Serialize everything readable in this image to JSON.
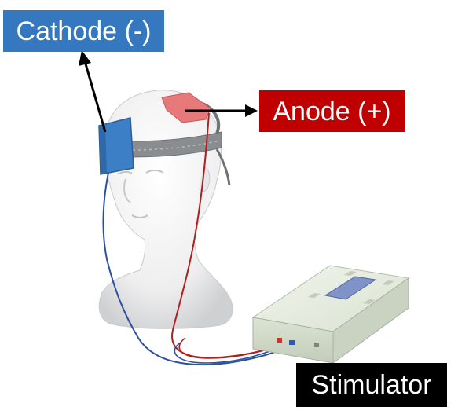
{
  "labels": {
    "cathode": "Cathode (-)",
    "anode": "Anode (+)",
    "stimulator": "Stimulator"
  },
  "colors": {
    "cathode_box": "#3578c0",
    "anode_box": "#c00000",
    "stimulator_box": "#000000",
    "cathode_pad": "#3d7fc7",
    "anode_pad": "#e8797a",
    "headband": "#8a8d90",
    "red_wire": "#b02020",
    "blue_wire": "#2c4f9e"
  },
  "icons": {
    "head": "mannequin-head-icon",
    "device": "stimulator-device-icon"
  }
}
